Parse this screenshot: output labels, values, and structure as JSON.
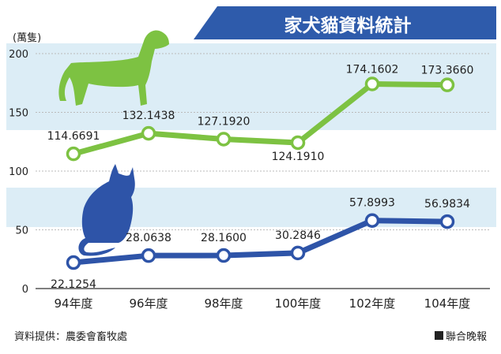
{
  "chart_data": {
    "type": "line",
    "title": "家犬貓資料統計",
    "ylabel": "(萬隻)",
    "ylim": [
      0,
      200
    ],
    "yticks": [
      "200",
      "150",
      "100",
      "50",
      "0"
    ],
    "categories": [
      "94年度",
      "96年度",
      "98年度",
      "100年度",
      "102年度",
      "104年度"
    ],
    "series": [
      {
        "values": [
          114.6691,
          132.1438,
          127.192,
          124.191,
          174.1602,
          173.366
        ],
        "labels": [
          "114.6691",
          "132.1438",
          "127.1920",
          "124.1910",
          "174.1602",
          "173.3660"
        ],
        "color": "#7dc242",
        "icon": "dog-silhouette-icon"
      },
      {
        "values": [
          22.1254,
          28.0638,
          28.16,
          30.2846,
          57.8993,
          56.9834
        ],
        "labels": [
          "22.1254",
          "28.0638",
          "28.1600",
          "30.2846",
          "57.8993",
          "56.9834"
        ],
        "color": "#2e54a8",
        "icon": "cat-silhouette-icon"
      }
    ],
    "grid": true
  },
  "footer": {
    "source": "資料提供：農委會畜牧處",
    "credit": "聯合晚報"
  },
  "colors": {
    "banner": "#2e5bab",
    "panel": "#dcedf6",
    "dog": "#7dc242",
    "cat": "#2e54a8"
  }
}
